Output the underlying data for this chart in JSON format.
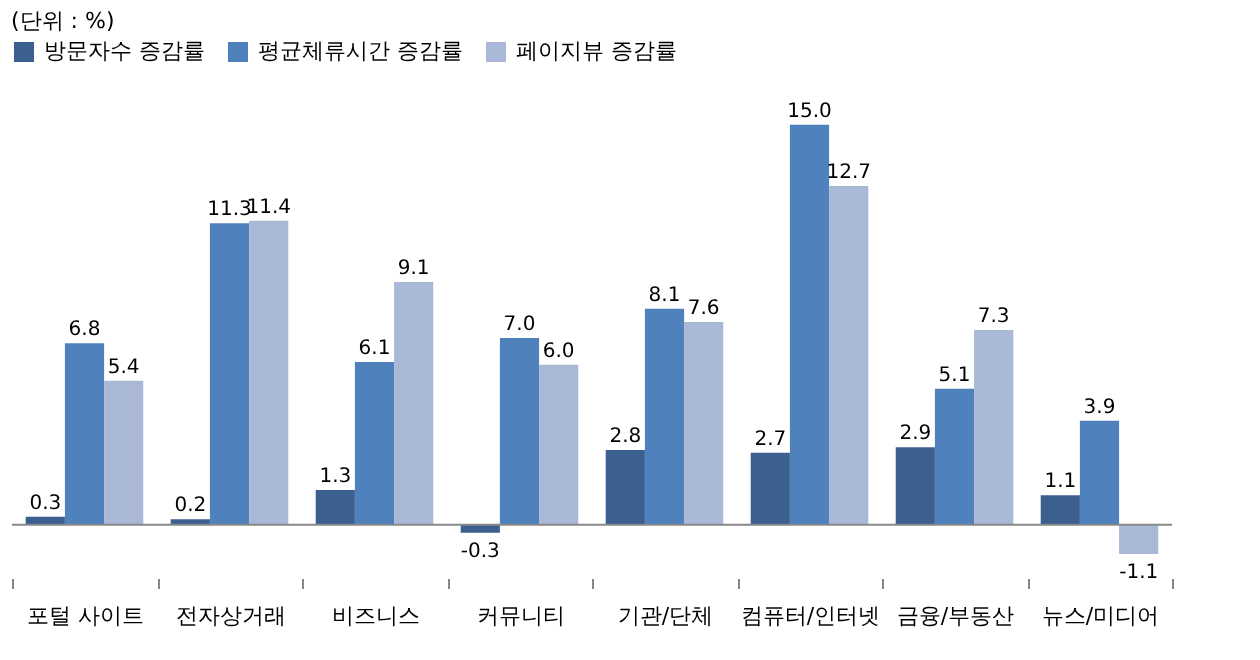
{
  "chart_data": {
    "type": "bar",
    "categories": [
      "포털 사이트",
      "전자상거래",
      "비즈니스",
      "커뮤니티",
      "기관/단체",
      "컴퓨터/인터넷",
      "금융/부동산",
      "뉴스/미디어"
    ],
    "series": [
      {
        "name": "방문자수 증감률",
        "color": "#3b5f8f",
        "values": [
          0.3,
          0.2,
          1.3,
          -0.3,
          2.8,
          2.7,
          2.9,
          1.1
        ],
        "value_labels": [
          "0.3",
          "0.2",
          "1.3",
          "-0.3",
          "2.8",
          "2.7",
          "2.9",
          "1.1"
        ]
      },
      {
        "name": "평균체류시간 증감률",
        "color": "#4f81bd",
        "values": [
          6.8,
          11.3,
          6.1,
          7.0,
          8.1,
          15.0,
          5.1,
          3.9
        ],
        "value_labels": [
          "6.8",
          "11.3",
          "6.1",
          "7.0",
          "8.1",
          "15.0",
          "5.1",
          "3.9"
        ]
      },
      {
        "name": "페이지뷰 증감률",
        "color": "#aab8d8",
        "values": [
          5.4,
          11.4,
          9.1,
          6.0,
          7.6,
          12.7,
          7.3,
          -1.1
        ],
        "value_labels": [
          "5.4",
          "11.4",
          "9.1",
          "6.0",
          "7.6",
          "12.7",
          "7.3",
          "-1.1"
        ]
      }
    ],
    "legend": "top",
    "grid": false,
    "annotations": [
      "(단위 : %)"
    ]
  }
}
